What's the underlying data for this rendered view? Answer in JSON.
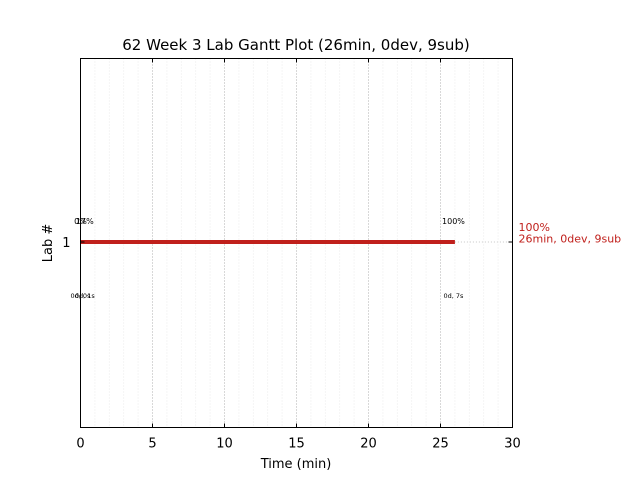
{
  "chart_data": {
    "type": "gantt",
    "title": "62 Week 3 Lab Gantt Plot (26min, 0dev, 9sub)",
    "xlabel": "Time (min)",
    "ylabel": "Lab #",
    "xlim": [
      0,
      30
    ],
    "x_ticks": [
      "0",
      "5",
      "10",
      "15",
      "20",
      "25",
      "30"
    ],
    "y_categories": [
      "1"
    ],
    "grid": "x",
    "series": [
      {
        "lab": "1",
        "start": 0,
        "end": 26,
        "color": "#c0201c",
        "end_label_pct": "100%",
        "end_label_detail": "26min, 0dev, 9sub",
        "markers": [
          {
            "x": 0,
            "label_top": "0%",
            "label_bottom": "0d, 0s"
          },
          {
            "x": 0.3,
            "label_top": "17%",
            "label_bottom": "0d, 1s"
          },
          {
            "x": 25.9,
            "label_top": "100%",
            "label_bottom": "0d, 7s"
          }
        ]
      }
    ]
  }
}
